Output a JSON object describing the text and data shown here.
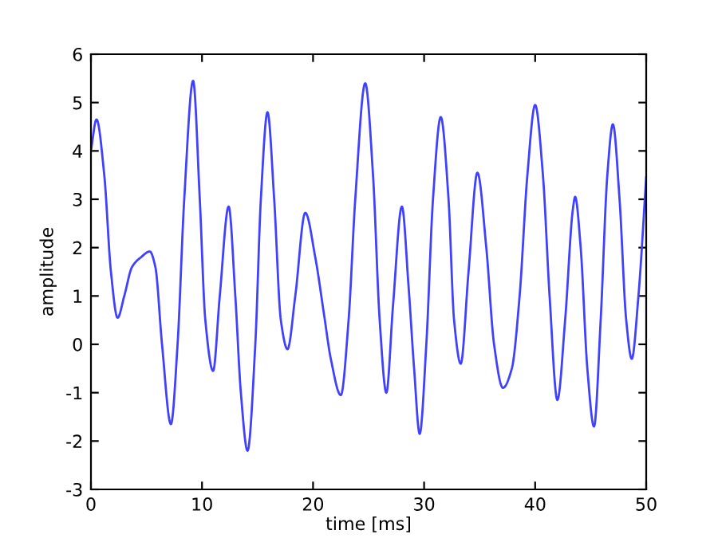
{
  "chart_data": {
    "type": "line",
    "xlabel": "time [ms]",
    "ylabel": "amplitude",
    "xlim": [
      0,
      50
    ],
    "ylim": [
      -3,
      6
    ],
    "xticks": [
      0,
      10,
      20,
      30,
      40,
      50
    ],
    "yticks": [
      -3,
      -2,
      -1,
      0,
      1,
      2,
      3,
      4,
      5,
      6
    ],
    "grid": false,
    "line_style": "solid",
    "marker": "none",
    "series": [
      {
        "color": "#4040ff",
        "x": [
          0,
          0.5,
          1.2,
          1.8,
          2.4,
          3.0,
          3.7,
          4.5,
          5.3,
          5.8,
          6.4,
          7.2,
          7.8,
          8.4,
          9.2,
          9.8,
          10.3,
          11.0,
          11.6,
          12.4,
          13.0,
          13.5,
          14.1,
          14.8,
          15.3,
          15.9,
          16.5,
          17.1,
          17.7,
          18.4,
          19.3,
          20.2,
          21.0,
          21.6,
          22.5,
          23.2,
          23.8,
          24.7,
          25.4,
          26.0,
          26.6,
          27.2,
          28.0,
          28.6,
          29.1,
          29.6,
          30.2,
          30.8,
          31.5,
          32.2,
          32.7,
          33.3,
          34.0,
          34.8,
          35.6,
          36.3,
          37.1,
          37.9,
          38.6,
          39.3,
          40.0,
          40.7,
          41.3,
          42.0,
          42.7,
          43.4,
          43.6,
          44.1,
          44.7,
          45.3,
          45.9,
          46.5,
          47.0,
          47.6,
          48.2,
          48.7,
          49.3,
          50.0
        ],
        "values": [
          4.0,
          4.65,
          3.5,
          1.5,
          0.55,
          1.0,
          1.6,
          1.8,
          1.92,
          1.6,
          0.0,
          -1.65,
          0.0,
          3.0,
          5.45,
          3.0,
          0.5,
          -0.55,
          1.0,
          2.85,
          1.0,
          -1.0,
          -2.2,
          0.0,
          3.0,
          4.8,
          3.0,
          0.5,
          -0.1,
          1.0,
          2.72,
          1.8,
          0.6,
          -0.3,
          -1.05,
          0.5,
          3.0,
          5.4,
          3.5,
          0.5,
          -1.0,
          0.8,
          2.85,
          1.2,
          -0.5,
          -1.85,
          0.0,
          3.0,
          4.7,
          3.0,
          0.5,
          -0.4,
          1.5,
          3.55,
          2.0,
          0.0,
          -0.9,
          -0.5,
          1.0,
          3.5,
          4.95,
          3.5,
          1.0,
          -1.15,
          0.5,
          2.8,
          3.05,
          2.0,
          -0.5,
          -1.7,
          0.5,
          3.5,
          4.55,
          3.0,
          0.5,
          -0.3,
          1.0,
          3.45
        ]
      }
    ]
  }
}
